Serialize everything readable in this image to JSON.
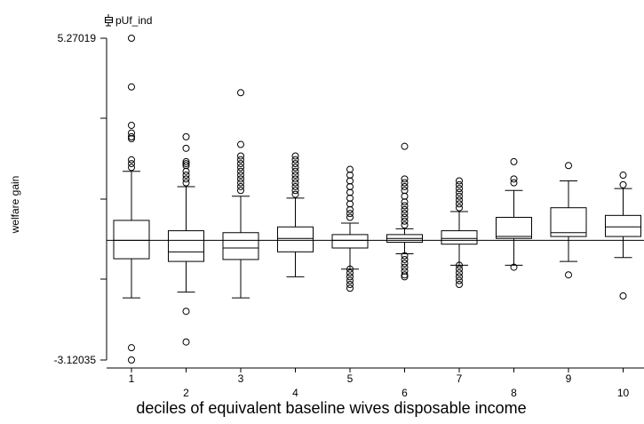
{
  "chart_data": {
    "type": "boxplot",
    "legend": {
      "label": "pUf_ind",
      "placement": "top-left"
    },
    "ylabel": "welfare gain",
    "xlabel": "deciles of equivalent baseline wives disposable income",
    "ylim": [
      -3.12035,
      5.27019
    ],
    "y_tick_labels": [
      "5.27019",
      "-3.12035"
    ],
    "reference_line": 0.0,
    "categories": [
      "1",
      "2",
      "3",
      "4",
      "5",
      "6",
      "7",
      "8",
      "9",
      "10"
    ],
    "boxes": [
      {
        "category": "1",
        "whisker_low": -1.5,
        "q1": -0.48,
        "median": 0.0,
        "q3": 0.52,
        "whisker_high": 1.8,
        "outliers": [
          5.27,
          4.0,
          3.0,
          2.8,
          2.7,
          2.65,
          2.1,
          2.0,
          1.9,
          -2.8,
          -3.12
        ]
      },
      {
        "category": "2",
        "whisker_low": -1.35,
        "q1": -0.55,
        "median": -0.3,
        "q3": 0.25,
        "whisker_high": 1.4,
        "outliers": [
          2.7,
          2.4,
          2.05,
          2.0,
          1.95,
          1.8,
          1.7,
          1.6,
          1.5,
          -1.85,
          -2.65
        ]
      },
      {
        "category": "3",
        "whisker_low": -1.5,
        "q1": -0.5,
        "median": -0.2,
        "q3": 0.2,
        "whisker_high": 1.15,
        "outliers": [
          3.85,
          2.5,
          2.2,
          2.1,
          2.0,
          1.9,
          1.8,
          1.7,
          1.6,
          1.5,
          1.4,
          1.3
        ]
      },
      {
        "category": "4",
        "whisker_low": -0.95,
        "q1": -0.3,
        "median": 0.05,
        "q3": 0.35,
        "whisker_high": 1.1,
        "outliers": [
          2.2,
          2.1,
          2.0,
          1.9,
          1.8,
          1.7,
          1.6,
          1.5,
          1.4,
          1.3,
          1.2
        ]
      },
      {
        "category": "5",
        "whisker_low": -0.75,
        "q1": -0.2,
        "median": 0.0,
        "q3": 0.15,
        "whisker_high": 0.45,
        "outliers": [
          1.85,
          1.7,
          1.55,
          1.4,
          1.25,
          1.1,
          0.95,
          0.8,
          0.7,
          0.6,
          -0.75,
          -0.85,
          -0.95,
          -1.05,
          -1.15,
          -1.25
        ]
      },
      {
        "category": "6",
        "whisker_low": -0.35,
        "q1": -0.05,
        "median": 0.05,
        "q3": 0.15,
        "whisker_high": 0.3,
        "outliers": [
          2.45,
          1.6,
          1.5,
          1.4,
          1.3,
          1.15,
          1.0,
          0.9,
          0.8,
          0.7,
          0.6,
          0.5,
          0.4,
          -0.4,
          -0.5,
          -0.6,
          -0.7,
          -0.8,
          -0.9,
          -0.95
        ]
      },
      {
        "category": "7",
        "whisker_low": -0.65,
        "q1": -0.1,
        "median": 0.05,
        "q3": 0.25,
        "whisker_high": 0.75,
        "outliers": [
          1.55,
          1.45,
          1.35,
          1.25,
          1.15,
          1.05,
          0.95,
          0.85,
          -0.65,
          -0.75,
          -0.85,
          -0.95,
          -1.05,
          -1.15
        ]
      },
      {
        "category": "8",
        "whisker_low": -0.65,
        "q1": 0.05,
        "median": 0.1,
        "q3": 0.6,
        "whisker_high": 1.3,
        "outliers": [
          2.05,
          1.6,
          1.5,
          -0.7
        ]
      },
      {
        "category": "9",
        "whisker_low": -0.55,
        "q1": 0.1,
        "median": 0.2,
        "q3": 0.85,
        "whisker_high": 1.55,
        "outliers": [
          1.95,
          -0.9
        ]
      },
      {
        "category": "10",
        "whisker_low": -0.45,
        "q1": 0.1,
        "median": 0.35,
        "q3": 0.65,
        "whisker_high": 1.35,
        "outliers": [
          1.7,
          1.45,
          -1.45
        ]
      }
    ]
  }
}
